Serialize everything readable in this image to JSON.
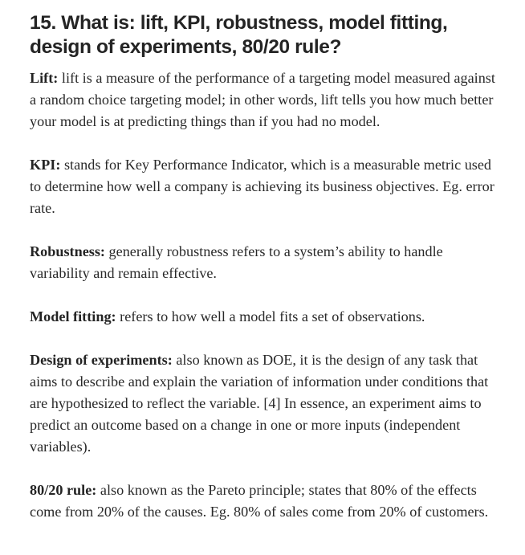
{
  "heading": "15. What is: lift, KPI, robustness, model fitting, design of experiments, 80/20 rule?",
  "definitions": [
    {
      "term": "Lift:",
      "text": " lift is a measure of the performance of a targeting model measured against a random choice targeting model; in other words, lift tells you how much better your model is at predicting things than if you had no model."
    },
    {
      "term": "KPI:",
      "text": " stands for Key Performance Indicator, which is a measurable metric used to determine how well a company is achieving its business objectives. Eg. error rate."
    },
    {
      "term": "Robustness:",
      "text": " generally robustness refers to a system’s ability to handle variability and remain effective."
    },
    {
      "term": "Model fitting:",
      "text": " refers to how well a model fits a set of observations."
    },
    {
      "term": "Design of experiments:",
      "text": " also known as DOE, it is the design of any task that aims to describe and explain the variation of information under conditions that are hypothesized to reflect the variable. [4] In essence, an experiment aims to predict an outcome based on a change in one or more inputs (independent variables)."
    },
    {
      "term": "80/20 rule:",
      "text": " also known as the Pareto principle; states that 80% of the effects come from 20% of the causes. Eg. 80% of sales come from 20% of customers."
    }
  ]
}
